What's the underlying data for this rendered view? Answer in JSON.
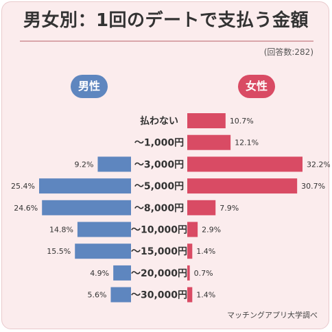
{
  "title": "男女別：1回のデートで支払う金額",
  "note": "(回答数:282)",
  "source": "マッチングアプリ大学調べ",
  "colors": {
    "male": "#5e86bf",
    "female": "#d94b64"
  },
  "chart_data": {
    "type": "bar",
    "orientation": "diverging-horizontal",
    "categories": [
      "払わない",
      "～1,000円",
      "～3,000円",
      "～5,000円",
      "～8,000円",
      "～10,000円",
      "～15,000円",
      "～20,000円",
      "～30,000円"
    ],
    "series": [
      {
        "name": "男性",
        "values": [
          null,
          null,
          9.2,
          25.4,
          24.6,
          14.8,
          15.5,
          4.9,
          5.6
        ],
        "labels": [
          "",
          "",
          "9.2%",
          "25.4%",
          "24.6%",
          "14.8%",
          "15.5%",
          "4.9%",
          "5.6%"
        ]
      },
      {
        "name": "女性",
        "values": [
          10.7,
          12.1,
          32.2,
          30.7,
          7.9,
          2.9,
          1.4,
          0.7,
          1.4
        ],
        "labels": [
          "10.7%",
          "12.1%",
          "32.2%",
          "30.7%",
          "7.9%",
          "2.9%",
          "1.4%",
          "0.7%",
          "1.4%"
        ]
      }
    ],
    "unit": "%"
  }
}
